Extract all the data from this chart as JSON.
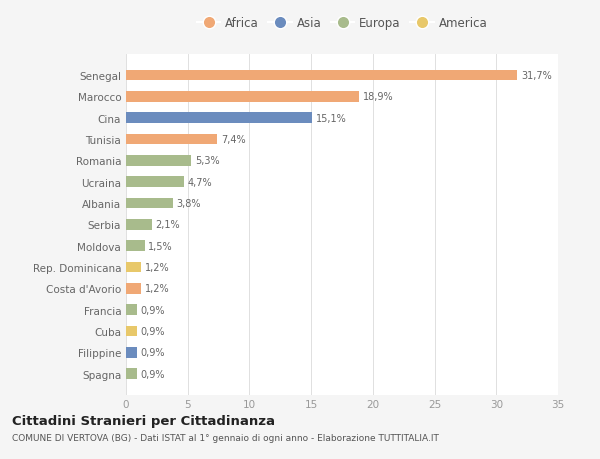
{
  "categories": [
    "Senegal",
    "Marocco",
    "Cina",
    "Tunisia",
    "Romania",
    "Ucraina",
    "Albania",
    "Serbia",
    "Moldova",
    "Rep. Dominicana",
    "Costa d'Avorio",
    "Francia",
    "Cuba",
    "Filippine",
    "Spagna"
  ],
  "values": [
    31.7,
    18.9,
    15.1,
    7.4,
    5.3,
    4.7,
    3.8,
    2.1,
    1.5,
    1.2,
    1.2,
    0.9,
    0.9,
    0.9,
    0.9
  ],
  "labels": [
    "31,7%",
    "18,9%",
    "15,1%",
    "7,4%",
    "5,3%",
    "4,7%",
    "3,8%",
    "2,1%",
    "1,5%",
    "1,2%",
    "1,2%",
    "0,9%",
    "0,9%",
    "0,9%",
    "0,9%"
  ],
  "colors": [
    "#F0A875",
    "#F0A875",
    "#6B8CBE",
    "#F0A875",
    "#A8BB8C",
    "#A8BB8C",
    "#A8BB8C",
    "#A8BB8C",
    "#A8BB8C",
    "#E8C86A",
    "#F0A875",
    "#A8BB8C",
    "#E8C86A",
    "#6B8CBE",
    "#A8BB8C"
  ],
  "legend": [
    {
      "label": "Africa",
      "color": "#F0A875"
    },
    {
      "label": "Asia",
      "color": "#6B8CBE"
    },
    {
      "label": "Europa",
      "color": "#A8BB8C"
    },
    {
      "label": "America",
      "color": "#E8C86A"
    }
  ],
  "xlim": [
    0,
    35
  ],
  "xticks": [
    0,
    5,
    10,
    15,
    20,
    25,
    30,
    35
  ],
  "title": "Cittadini Stranieri per Cittadinanza",
  "subtitle": "COMUNE DI VERTOVA (BG) - Dati ISTAT al 1° gennaio di ogni anno - Elaborazione TUTTITALIA.IT",
  "bg_color": "#f5f5f5",
  "plot_bg_color": "#ffffff"
}
